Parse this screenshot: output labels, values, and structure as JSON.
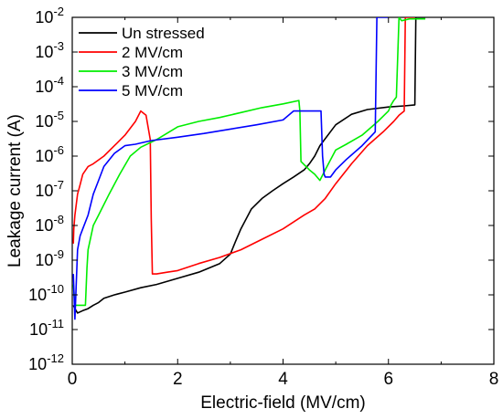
{
  "chart_data": {
    "type": "line",
    "xlabel": "Electric-field (MV/cm)",
    "ylabel": "Leakage current (A)",
    "x_range": [
      0,
      8
    ],
    "y_range": [
      1e-12,
      0.01
    ],
    "y_scale": "log",
    "x_ticks": [
      "0",
      "2",
      "4",
      "6",
      "8"
    ],
    "y_ticks": [
      {
        "base": "10",
        "exp": "-12"
      },
      {
        "base": "10",
        "exp": "-11"
      },
      {
        "base": "10",
        "exp": "-10"
      },
      {
        "base": "10",
        "exp": "-9"
      },
      {
        "base": "10",
        "exp": "-8"
      },
      {
        "base": "10",
        "exp": "-7"
      },
      {
        "base": "10",
        "exp": "-6"
      },
      {
        "base": "10",
        "exp": "-5"
      },
      {
        "base": "10",
        "exp": "-4"
      },
      {
        "base": "10",
        "exp": "-3"
      },
      {
        "base": "10",
        "exp": "-2"
      }
    ],
    "legend_position": "top-left",
    "grid": false,
    "series": [
      {
        "name": "Un stressed",
        "color": "#000000",
        "x": [
          0.02,
          0.05,
          0.1,
          0.2,
          0.3,
          0.4,
          0.5,
          0.6,
          0.8,
          1.0,
          1.3,
          1.6,
          2.0,
          2.4,
          2.8,
          3.0,
          3.1,
          3.2,
          3.4,
          3.6,
          3.8,
          4.0,
          4.2,
          4.4,
          4.5,
          4.6,
          4.7,
          5.0,
          5.3,
          5.6,
          6.0,
          6.3,
          6.5,
          6.52,
          6.6,
          6.7
        ],
        "y": [
          5e-11,
          4e-11,
          3e-11,
          3.5e-11,
          4e-11,
          5e-11,
          6e-11,
          8e-11,
          1e-10,
          1.2e-10,
          1.6e-10,
          2e-10,
          3e-10,
          4.5e-10,
          8e-10,
          1.5e-09,
          3.5e-09,
          8e-09,
          3e-08,
          6e-08,
          1e-07,
          1.6e-07,
          2.5e-07,
          4e-07,
          6e-07,
          1e-06,
          2e-06,
          8e-06,
          1.6e-05,
          2.2e-05,
          2.6e-05,
          2.8e-05,
          3e-05,
          0.01,
          0.01,
          0.01
        ]
      },
      {
        "name": "2 MV/cm",
        "color": "#ff0000",
        "x": [
          0.02,
          0.03,
          0.05,
          0.1,
          0.15,
          0.2,
          0.3,
          0.4,
          0.6,
          0.8,
          1.0,
          1.2,
          1.3,
          1.4,
          1.48,
          1.5,
          1.52,
          1.6,
          1.8,
          2.0,
          2.4,
          2.8,
          3.2,
          3.6,
          4.0,
          4.4,
          4.6,
          4.8,
          5.0,
          5.3,
          5.6,
          5.9,
          6.1,
          6.2,
          6.3,
          6.32,
          6.4,
          6.5
        ],
        "y": [
          3e-09,
          8e-09,
          2e-08,
          8e-08,
          1.5e-07,
          3e-07,
          5e-07,
          6e-07,
          1e-06,
          2e-06,
          4e-06,
          1e-05,
          2e-05,
          1.5e-05,
          3e-06,
          1.5e-08,
          4e-10,
          4e-10,
          4.5e-10,
          5e-10,
          8e-10,
          1.2e-09,
          2e-09,
          4e-09,
          8e-09,
          2e-08,
          3e-08,
          6e-08,
          1.6e-07,
          6e-07,
          2e-06,
          5e-06,
          1e-05,
          1.5e-05,
          2e-05,
          0.01,
          0.01,
          0.01
        ]
      },
      {
        "name": "3 MV/cm",
        "color": "#00ee00",
        "x": [
          0.02,
          0.05,
          0.05,
          0.1,
          0.2,
          0.25,
          0.28,
          0.3,
          0.4,
          0.5,
          0.7,
          0.9,
          1.1,
          1.3,
          1.6,
          2.0,
          2.4,
          2.8,
          3.2,
          3.6,
          4.0,
          4.3,
          4.32,
          4.34,
          4.5,
          4.6,
          4.7,
          4.8,
          5.0,
          5.2,
          5.5,
          5.8,
          6.0,
          6.05,
          6.1,
          6.15,
          6.2,
          6.25,
          6.4,
          6.5,
          6.7
        ],
        "y": [
          2e-10,
          5e-11,
          5e-11,
          5e-11,
          5e-11,
          5e-11,
          6e-10,
          2e-09,
          1e-08,
          2e-08,
          8e-08,
          3e-07,
          1e-06,
          1.8e-06,
          3e-06,
          7e-06,
          1e-05,
          1.3e-05,
          1.8e-05,
          2.5e-05,
          3.2e-05,
          4e-05,
          2e-05,
          7e-07,
          4e-07,
          3e-07,
          2e-07,
          4e-07,
          1.5e-06,
          2.2e-06,
          4e-06,
          1e-05,
          2e-05,
          3e-05,
          4e-05,
          5e-05,
          0.01,
          0.008,
          0.009,
          0.009,
          0.009
        ]
      },
      {
        "name": "5 MV/cm",
        "color": "#0000ff",
        "x": [
          0.02,
          0.05,
          0.08,
          0.1,
          0.15,
          0.2,
          0.3,
          0.4,
          0.5,
          0.6,
          0.8,
          1.0,
          1.2,
          1.5,
          2.0,
          2.5,
          3.0,
          3.5,
          4.0,
          4.2,
          4.5,
          4.72,
          4.75,
          4.78,
          4.8,
          4.9,
          5.0,
          5.2,
          5.5,
          5.75,
          5.78,
          5.8,
          5.85,
          6.0
        ],
        "y": [
          4e-10,
          2e-11,
          3e-10,
          2e-09,
          5e-09,
          8e-09,
          2e-08,
          8e-08,
          2e-07,
          5e-07,
          1.2e-06,
          2e-06,
          2.2e-06,
          2.8e-06,
          3.5e-06,
          4.5e-06,
          6e-06,
          8e-06,
          1.1e-05,
          2e-05,
          2e-05,
          2e-05,
          1e-06,
          3e-07,
          2.5e-07,
          2.5e-07,
          4e-07,
          8e-07,
          2e-06,
          5e-06,
          0.01,
          0.01,
          0.01,
          0.01
        ]
      }
    ]
  }
}
